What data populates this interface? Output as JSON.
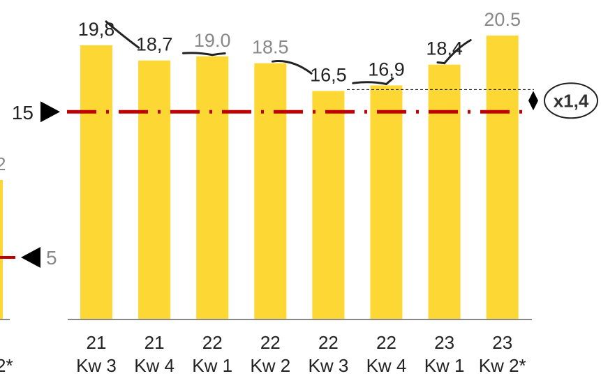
{
  "chart_data": {
    "type": "bar",
    "title": "",
    "xlabel": "",
    "ylabel": "",
    "ylim": [
      0,
      22
    ],
    "grid": false,
    "legend": "none",
    "categories": [
      {
        "year": "21",
        "quarter": "Kw 3"
      },
      {
        "year": "21",
        "quarter": "Kw 4"
      },
      {
        "year": "22",
        "quarter": "Kw 1"
      },
      {
        "year": "22",
        "quarter": "Kw 2"
      },
      {
        "year": "22",
        "quarter": "Kw 3"
      },
      {
        "year": "22",
        "quarter": "Kw 4"
      },
      {
        "year": "23",
        "quarter": "Kw 1"
      },
      {
        "year": "23",
        "quarter": "Kw 2*"
      }
    ],
    "values": [
      19.8,
      18.7,
      19.0,
      18.5,
      16.5,
      16.9,
      18.4,
      20.5
    ],
    "value_labels": [
      "19,8",
      "18,7",
      "19.0",
      "18.5",
      "16,5",
      "16,9",
      "18,4",
      "20.5"
    ],
    "value_label_colors": [
      "#222222",
      "#222222",
      "#888888",
      "#888888",
      "#222222",
      "#222222",
      "#222222",
      "#888888"
    ],
    "reference_line": {
      "value": 15,
      "label": "15",
      "color": "#c00000"
    },
    "multiplier_annotation": {
      "label": "x1,4"
    },
    "bar_color": "#fdd835",
    "left_partial": {
      "value_label": "2",
      "reference_label": "5",
      "category_label": "2*"
    }
  }
}
